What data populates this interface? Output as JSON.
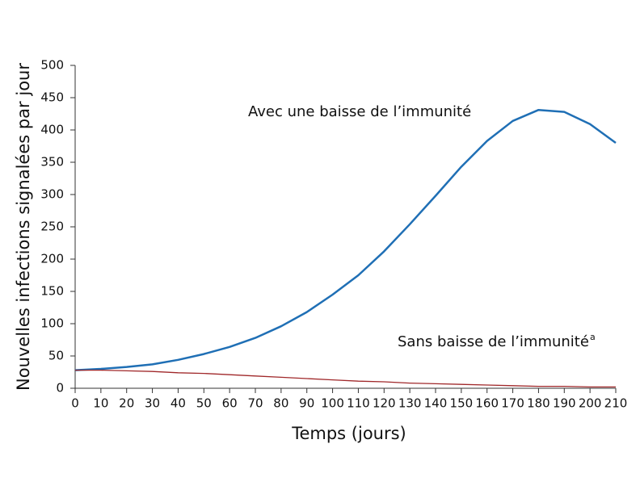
{
  "chart_data": {
    "type": "line",
    "xlabel": "Temps (jours)",
    "ylabel": "Nouvelles infections signalées par jour",
    "x": [
      0,
      10,
      20,
      30,
      40,
      50,
      60,
      70,
      80,
      90,
      100,
      110,
      120,
      130,
      140,
      150,
      160,
      170,
      180,
      190,
      200,
      210
    ],
    "series": [
      {
        "name": "Avec une baisse de l’immunité",
        "color": "#1f6fb5",
        "values": [
          28,
          30,
          33,
          37,
          44,
          53,
          64,
          78,
          96,
          118,
          145,
          175,
          212,
          254,
          298,
          343,
          383,
          414,
          431,
          428,
          409,
          380
        ]
      },
      {
        "name": "Sans baisse de l’immunité",
        "color": "#a0282a",
        "footnote_marker": "a",
        "values": [
          28,
          28,
          27,
          26,
          24,
          23,
          21,
          19,
          17,
          15,
          13,
          11,
          10,
          8,
          7,
          6,
          5,
          4,
          3,
          3,
          2,
          2
        ]
      }
    ],
    "xlim": [
      0,
      210
    ],
    "xticks": [
      0,
      10,
      20,
      30,
      40,
      50,
      60,
      70,
      80,
      90,
      100,
      110,
      120,
      130,
      140,
      150,
      160,
      170,
      180,
      190,
      200,
      210
    ],
    "ylim": [
      0,
      500
    ],
    "yticks": [
      0,
      50,
      100,
      150,
      200,
      250,
      300,
      350,
      400,
      450,
      500
    ],
    "grid": false
  }
}
